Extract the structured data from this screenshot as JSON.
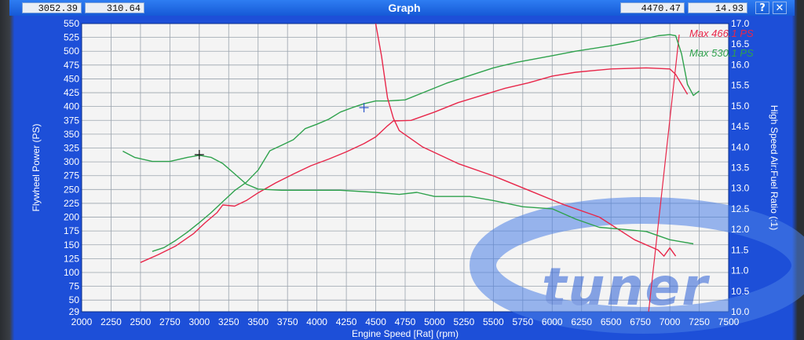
{
  "window": {
    "title": "Graph",
    "readouts": [
      "3052.39",
      "310.64",
      "4470.47",
      "14.93"
    ],
    "buttons": [
      "?",
      "✕"
    ]
  },
  "chart_data": {
    "type": "line",
    "xlabel": "Engine Speed [Rat] (rpm)",
    "ylabel": "Flywheel Power (PS)",
    "y2label": "High Speed Air:Fuel Ratio (:1)",
    "xlim": [
      2000,
      7500
    ],
    "ylim": [
      29,
      550
    ],
    "y2lim": [
      10.0,
      17.0
    ],
    "grid": true,
    "legend_position": "top-right",
    "legend": [
      "Max 466.1 PS",
      "Max 530.1 PS"
    ],
    "x_ticks": [
      2000,
      2250,
      2500,
      2750,
      3000,
      3250,
      3500,
      3750,
      4000,
      4250,
      4500,
      4750,
      5000,
      5250,
      5500,
      5750,
      6000,
      6250,
      6500,
      6750,
      7000,
      7250,
      7500
    ],
    "y_ticks": [
      "29",
      "50",
      "75",
      "100",
      "125",
      "150",
      "175",
      "200",
      "225",
      "250",
      "275",
      "300",
      "325",
      "350",
      "375",
      "400",
      "425",
      "450",
      "475",
      "500",
      "525",
      "550"
    ],
    "y2_ticks": [
      "10.0",
      "10.5",
      "11.0",
      "11.5",
      "12.0",
      "12.5",
      "13.0",
      "13.5",
      "14.0",
      "14.5",
      "15.0",
      "15.5",
      "16.0",
      "16.5",
      "17.0"
    ],
    "colors": {
      "red": "#e8274a",
      "green": "#2fa24d",
      "background": "#f4f4f4",
      "grid": "#9aa3ad",
      "frame": "#1d4fd8",
      "watermark": "#4a7fe6"
    },
    "series": [
      {
        "name": "Max 466.1 PS",
        "kind": "power",
        "color": "red",
        "axis": "left",
        "points": [
          [
            2500,
            118
          ],
          [
            2650,
            132
          ],
          [
            2800,
            148
          ],
          [
            2950,
            170
          ],
          [
            3050,
            190
          ],
          [
            3150,
            208
          ],
          [
            3200,
            222
          ],
          [
            3300,
            220
          ],
          [
            3400,
            230
          ],
          [
            3500,
            244
          ],
          [
            3650,
            262
          ],
          [
            3800,
            278
          ],
          [
            3950,
            293
          ],
          [
            4100,
            305
          ],
          [
            4250,
            318
          ],
          [
            4400,
            333
          ],
          [
            4500,
            345
          ],
          [
            4600,
            365
          ],
          [
            4650,
            374
          ],
          [
            4800,
            375
          ],
          [
            5000,
            390
          ],
          [
            5200,
            407
          ],
          [
            5400,
            420
          ],
          [
            5600,
            433
          ],
          [
            5800,
            443
          ],
          [
            6000,
            455
          ],
          [
            6200,
            462
          ],
          [
            6500,
            468
          ],
          [
            6800,
            470
          ],
          [
            7000,
            468
          ],
          [
            7050,
            458
          ],
          [
            7100,
            440
          ],
          [
            7150,
            422
          ]
        ]
      },
      {
        "name": "Max 530.1 PS",
        "kind": "power",
        "color": "green",
        "axis": "left",
        "points": [
          [
            2600,
            138
          ],
          [
            2700,
            145
          ],
          [
            2800,
            158
          ],
          [
            2900,
            173
          ],
          [
            3000,
            190
          ],
          [
            3100,
            208
          ],
          [
            3200,
            228
          ],
          [
            3300,
            248
          ],
          [
            3400,
            263
          ],
          [
            3500,
            285
          ],
          [
            3600,
            320
          ],
          [
            3700,
            330
          ],
          [
            3800,
            340
          ],
          [
            3900,
            360
          ],
          [
            4000,
            368
          ],
          [
            4100,
            377
          ],
          [
            4200,
            390
          ],
          [
            4300,
            398
          ],
          [
            4400,
            405
          ],
          [
            4500,
            410
          ],
          [
            4600,
            410
          ],
          [
            4750,
            412
          ],
          [
            4900,
            425
          ],
          [
            5100,
            442
          ],
          [
            5300,
            456
          ],
          [
            5500,
            470
          ],
          [
            5700,
            480
          ],
          [
            6000,
            492
          ],
          [
            6200,
            500
          ],
          [
            6500,
            510
          ],
          [
            6700,
            518
          ],
          [
            6900,
            528
          ],
          [
            7000,
            530
          ],
          [
            7050,
            528
          ],
          [
            7100,
            495
          ],
          [
            7150,
            440
          ],
          [
            7200,
            420
          ],
          [
            7250,
            428
          ]
        ]
      },
      {
        "name": "",
        "kind": "afr",
        "color": "red",
        "axis": "right",
        "points": [
          [
            4500,
            17.0
          ],
          [
            4550,
            16.2
          ],
          [
            4600,
            15.2
          ],
          [
            4650,
            14.7
          ],
          [
            4700,
            14.4
          ],
          [
            4900,
            14.0
          ],
          [
            5200,
            13.6
          ],
          [
            5500,
            13.3
          ],
          [
            5800,
            12.95
          ],
          [
            6100,
            12.6
          ],
          [
            6400,
            12.3
          ],
          [
            6700,
            11.75
          ],
          [
            6900,
            11.5
          ],
          [
            6950,
            11.35
          ],
          [
            7000,
            11.55
          ],
          [
            7050,
            11.35
          ]
        ]
      },
      {
        "name": "",
        "kind": "afr",
        "color": "green",
        "axis": "right",
        "points": [
          [
            2350,
            13.9
          ],
          [
            2450,
            13.75
          ],
          [
            2600,
            13.65
          ],
          [
            2750,
            13.65
          ],
          [
            2900,
            13.75
          ],
          [
            3000,
            13.8
          ],
          [
            3100,
            13.75
          ],
          [
            3200,
            13.6
          ],
          [
            3300,
            13.35
          ],
          [
            3400,
            13.1
          ],
          [
            3500,
            12.98
          ],
          [
            3700,
            12.95
          ],
          [
            3900,
            12.95
          ],
          [
            4200,
            12.95
          ],
          [
            4500,
            12.9
          ],
          [
            4700,
            12.85
          ],
          [
            4850,
            12.9
          ],
          [
            5000,
            12.8
          ],
          [
            5300,
            12.8
          ],
          [
            5500,
            12.7
          ],
          [
            5750,
            12.55
          ],
          [
            6000,
            12.5
          ],
          [
            6200,
            12.25
          ],
          [
            6400,
            12.05
          ],
          [
            6600,
            12.0
          ],
          [
            6800,
            11.95
          ],
          [
            7000,
            11.75
          ],
          [
            7100,
            11.7
          ],
          [
            7200,
            11.65
          ]
        ]
      }
    ],
    "cursor_markers": [
      {
        "x": 3000,
        "y": 313,
        "color": "black"
      },
      {
        "x": 4400,
        "y": 398,
        "color": "blue"
      }
    ],
    "vertical_line": {
      "x_from": 6820,
      "x_to": 7080,
      "y_from": 29,
      "y_to": 530,
      "color": "red"
    },
    "watermark": "tuner"
  }
}
